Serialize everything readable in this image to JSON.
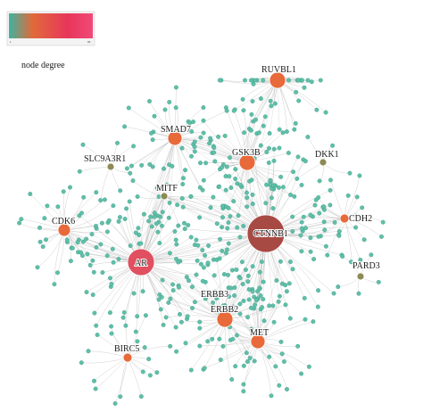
{
  "legend": {
    "caption": "node degree",
    "gradient_colors": [
      "#3fb3a0",
      "#e06a3a",
      "#e8365a",
      "#f04a78"
    ],
    "tick_low": "1",
    "tick_high": "99"
  },
  "colors": {
    "leaf_node": "#5fbfa8",
    "leaf_stroke": "#2f8f7a",
    "edge": "#b9b9b9",
    "low_degree_hub": "#8e8a55",
    "mid_degree_hub": "#e8693a",
    "high_degree_hub": "#e05060",
    "top_degree_hub": "#a84a44"
  },
  "hubs": [
    {
      "id": "CTNNB1",
      "label": "CTNNB1",
      "degree": 99
    },
    {
      "id": "AR",
      "label": "AR",
      "degree": 72
    },
    {
      "id": "RUVBL1",
      "label": "RUVBL1",
      "degree": 40
    },
    {
      "id": "SMAD7",
      "label": "SMAD7",
      "degree": 38
    },
    {
      "id": "GSK3B",
      "label": "GSK3B",
      "degree": 42
    },
    {
      "id": "CDK6",
      "label": "CDK6",
      "degree": 34
    },
    {
      "id": "ERBB2",
      "label": "ERBB2",
      "degree": 46
    },
    {
      "id": "MET",
      "label": "MET",
      "degree": 40
    },
    {
      "id": "BIRC5",
      "label": "BIRC5",
      "degree": 22
    },
    {
      "id": "CDH2",
      "label": "CDH2",
      "degree": 20
    },
    {
      "id": "SLC9A3R1",
      "label": "SLC9A3R1",
      "degree": 8
    },
    {
      "id": "MITF",
      "label": "MITF",
      "degree": 8
    },
    {
      "id": "DKK1",
      "label": "DKK1",
      "degree": 6
    },
    {
      "id": "PARD3",
      "label": "PARD3",
      "degree": 6
    },
    {
      "id": "ERBB3",
      "label": "ERBB3",
      "degree": 6
    }
  ]
}
